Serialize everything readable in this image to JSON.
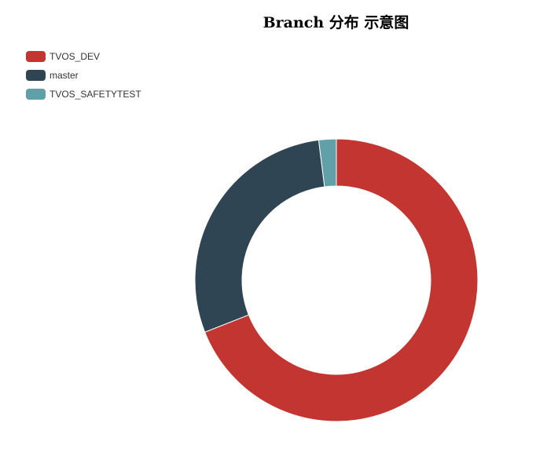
{
  "chart_data": {
    "type": "pie",
    "title": "Branch 分布 示意图",
    "categories": [
      "TVOS_DEV",
      "master",
      "TVOS_SAFETYTEST"
    ],
    "values": [
      69,
      29,
      2
    ],
    "colors": [
      "#c23531",
      "#2f4554",
      "#61a0a8"
    ],
    "donut": true,
    "legend_position": "top-left"
  }
}
